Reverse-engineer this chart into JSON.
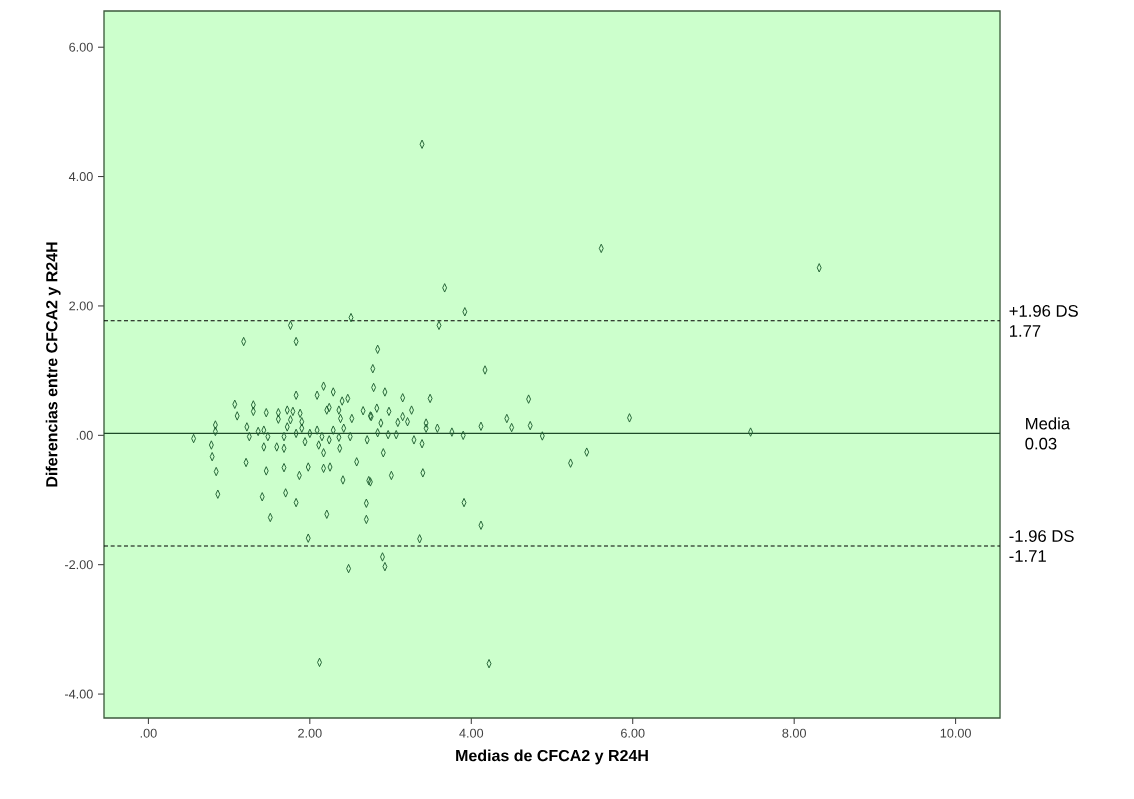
{
  "chart_data": {
    "type": "scatter",
    "xlabel": "Medias de CFCA2 y R24H",
    "ylabel": "Diferencias entre CFCA2 y R24H",
    "xlim": [
      -0.55,
      10.55
    ],
    "ylim": [
      -4.37,
      6.56
    ],
    "xticks": [
      {
        "value": 0,
        "label": ".00"
      },
      {
        "value": 2,
        "label": "2.00"
      },
      {
        "value": 4,
        "label": "4.00"
      },
      {
        "value": 6,
        "label": "6.00"
      },
      {
        "value": 8,
        "label": "8.00"
      },
      {
        "value": 10,
        "label": "10.00"
      }
    ],
    "yticks": [
      {
        "value": -4,
        "label": "-4.00"
      },
      {
        "value": -2,
        "label": "-2.00"
      },
      {
        "value": 0,
        "label": ".00"
      },
      {
        "value": 2,
        "label": "2.00"
      },
      {
        "value": 4,
        "label": "4.00"
      },
      {
        "value": 6,
        "label": "6.00"
      }
    ],
    "marker": "diamond",
    "series": [
      {
        "color": "#1e5e30",
        "x": [
          3.39,
          5.61,
          8.31,
          3.67,
          3.92,
          2.51,
          1.76,
          3.6,
          2.84,
          2.78,
          4.17,
          2.79,
          2.93,
          3.15,
          3.49,
          4.71,
          2.83,
          2.98,
          3.26,
          2.76,
          3.15,
          3.21,
          2.88,
          3.09,
          4.44,
          4.5,
          5.96,
          3.44,
          3.44,
          3.58,
          3.76,
          3.9,
          4.12,
          4.73,
          4.88,
          2.84,
          2.97,
          3.07,
          3.29,
          3.39,
          2.91,
          3.01,
          3.4,
          5.23,
          5.43,
          3.91,
          4.12,
          3.36,
          2.9,
          2.93,
          2.75,
          7.46,
          2.48,
          2.12,
          4.22,
          1.98,
          1.18,
          1.83,
          1.83,
          2.09,
          2.17,
          2.29,
          2.47,
          2.4,
          1.07,
          1.1,
          1.3,
          1.3,
          1.46,
          1.61,
          1.72,
          1.79,
          1.88,
          1.61,
          1.76,
          1.9,
          2.21,
          2.24,
          2.36,
          2.38,
          2.52,
          2.66,
          2.75,
          0.83,
          0.83,
          0.56,
          0.78,
          0.79,
          0.84,
          0.86,
          1.22,
          1.25,
          1.36,
          1.43,
          1.48,
          1.43,
          1.59,
          1.68,
          1.68,
          1.72,
          1.83,
          1.9,
          1.94,
          2.0,
          2.09,
          2.15,
          2.11,
          2.17,
          2.24,
          2.29,
          2.36,
          2.42,
          2.37,
          2.5,
          2.71,
          1.21,
          1.46,
          1.68,
          1.87,
          1.98,
          2.17,
          2.25,
          2.41,
          2.58,
          2.73,
          2.7,
          2.7,
          1.41,
          1.7,
          1.83,
          1.51,
          2.21
        ],
        "values": [
          4.5,
          2.89,
          2.59,
          2.28,
          1.91,
          1.82,
          1.7,
          1.7,
          1.33,
          1.03,
          1.01,
          0.74,
          0.67,
          0.58,
          0.57,
          0.56,
          0.42,
          0.37,
          0.39,
          0.29,
          0.29,
          0.21,
          0.19,
          0.2,
          0.26,
          0.12,
          0.27,
          0.19,
          0.11,
          0.11,
          0.05,
          0.0,
          0.14,
          0.15,
          -0.01,
          0.04,
          0.01,
          0.01,
          -0.07,
          -0.13,
          -0.27,
          -0.62,
          -0.58,
          -0.43,
          -0.26,
          -1.04,
          -1.39,
          -1.6,
          -1.88,
          -2.03,
          -0.72,
          0.05,
          -2.06,
          -3.51,
          -3.53,
          -1.59,
          1.45,
          1.45,
          0.62,
          0.62,
          0.76,
          0.67,
          0.57,
          0.53,
          0.48,
          0.3,
          0.47,
          0.37,
          0.35,
          0.35,
          0.39,
          0.37,
          0.34,
          0.25,
          0.24,
          0.21,
          0.39,
          0.43,
          0.39,
          0.26,
          0.26,
          0.38,
          0.3,
          0.16,
          0.06,
          -0.05,
          -0.15,
          -0.33,
          -0.56,
          -0.91,
          0.13,
          -0.02,
          0.06,
          0.08,
          -0.02,
          -0.18,
          -0.18,
          -0.02,
          -0.2,
          0.13,
          0.03,
          0.11,
          -0.1,
          0.03,
          0.08,
          -0.02,
          -0.15,
          -0.27,
          -0.07,
          0.08,
          -0.03,
          0.11,
          -0.2,
          -0.02,
          -0.07,
          -0.42,
          -0.55,
          -0.5,
          -0.62,
          -0.49,
          -0.51,
          -0.49,
          -0.69,
          -0.41,
          -0.7,
          -1.05,
          -1.3,
          -0.95,
          -0.89,
          -1.04,
          -1.27,
          -1.22
        ]
      }
    ],
    "annotations": [
      "1.77",
      "0.03",
      "-1.71"
    ],
    "ref_lines": [
      {
        "axis": "y",
        "value": 1.77,
        "label": "+1.96 DS",
        "line_style": "dashed",
        "color": "#000000"
      },
      {
        "axis": "y",
        "value": 0.03,
        "label": "Media",
        "line_style": "solid",
        "color": "#1e4a28"
      },
      {
        "axis": "y",
        "value": -1.71,
        "label": "-1.96 DS",
        "line_style": "dashed",
        "color": "#000000"
      }
    ]
  }
}
